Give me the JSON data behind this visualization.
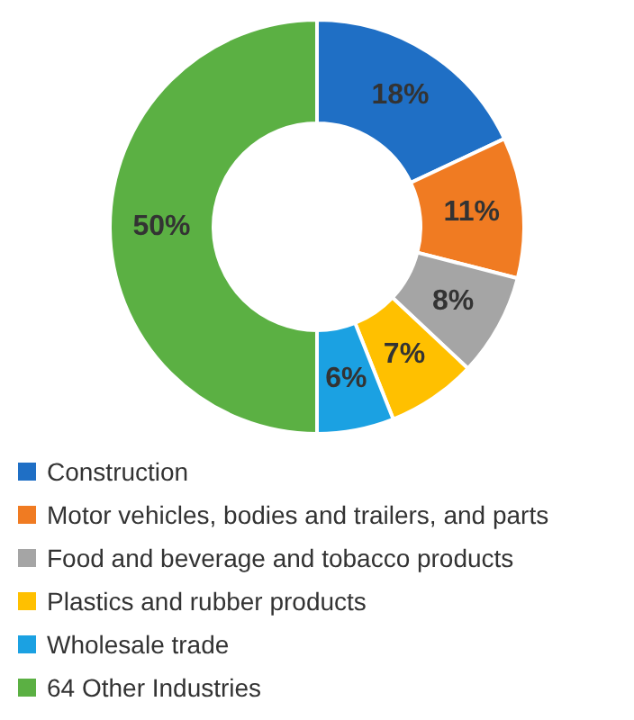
{
  "chart_data": {
    "type": "donut",
    "categories": [
      "Construction",
      "Motor vehicles, bodies and trailers, and parts",
      "Food and beverage and tobacco products",
      "Plastics and rubber products",
      "Wholesale trade",
      "64 Other Industries"
    ],
    "values": [
      18,
      11,
      8,
      7,
      6,
      50
    ],
    "colors": [
      "#1f6fc5",
      "#f07b22",
      "#a5a5a5",
      "#ffc000",
      "#1ba1e2",
      "#5bb043"
    ],
    "value_labels": [
      "18%",
      "11%",
      "8%",
      "7%",
      "6%",
      "50%"
    ],
    "legend": "bottom left"
  }
}
